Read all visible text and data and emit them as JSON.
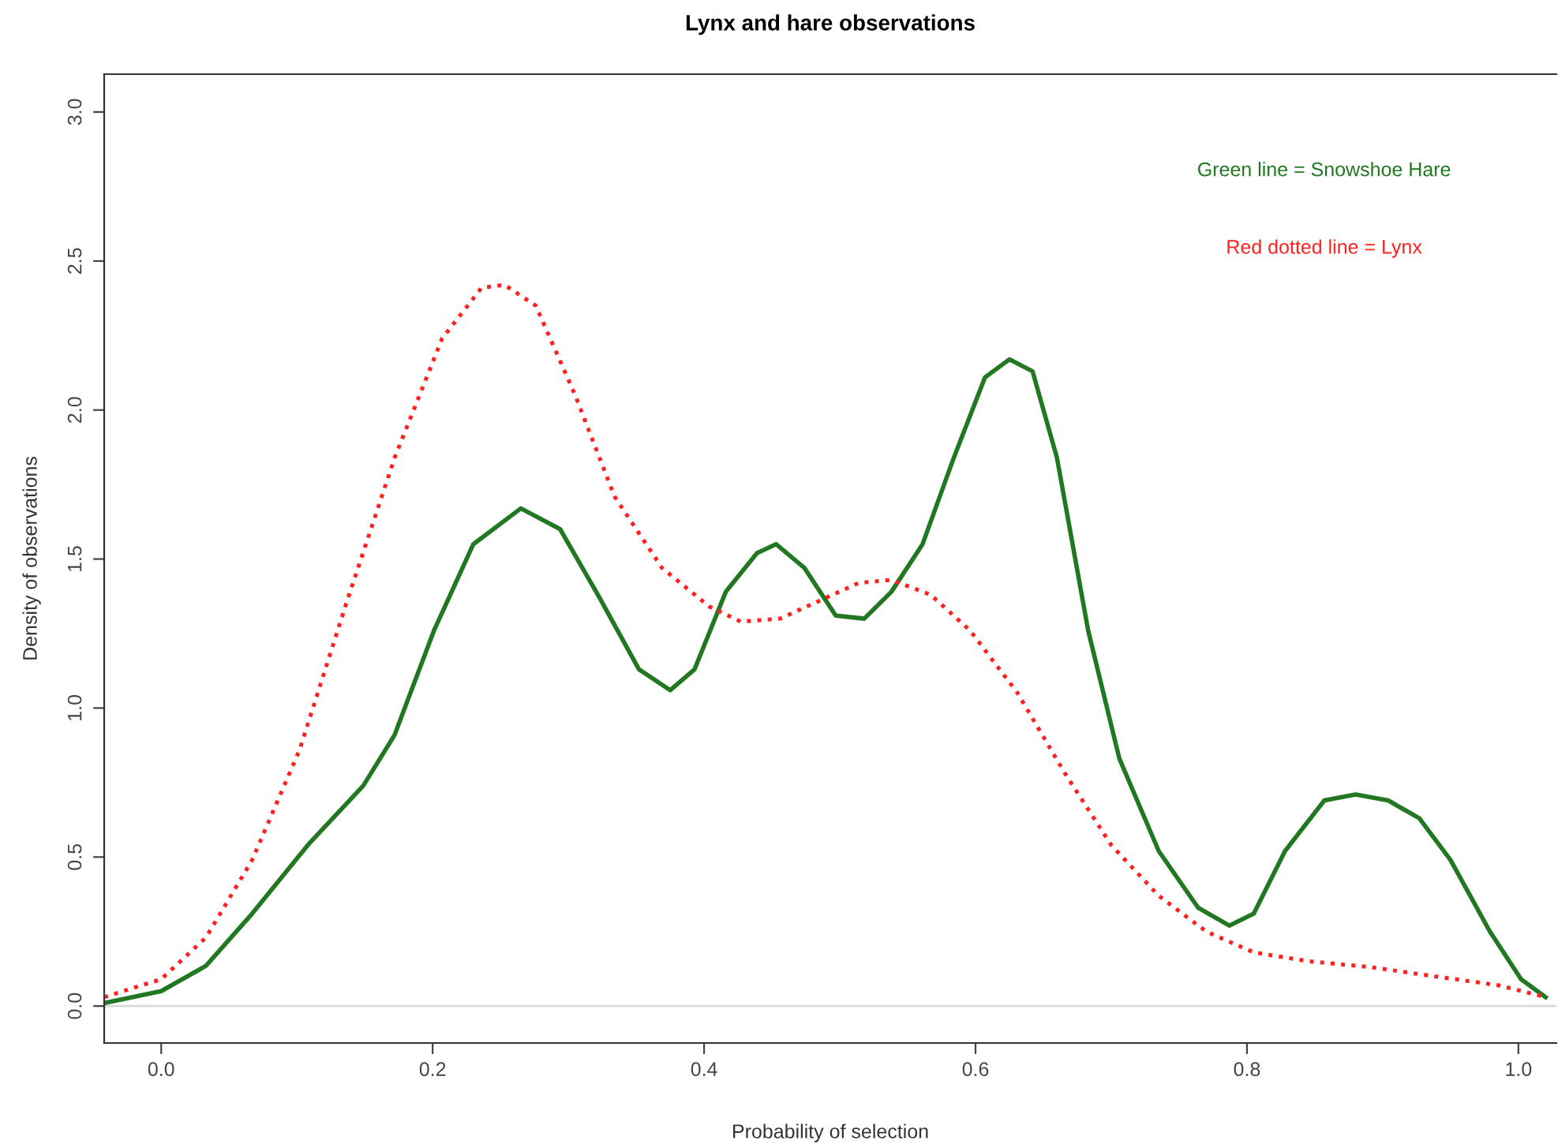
{
  "chart_data": {
    "type": "line",
    "title": "Lynx and hare observations",
    "xlabel": "Probability of selection",
    "ylabel": "Density of observations",
    "xlim": [
      -0.042,
      1.028
    ],
    "ylim": [
      -0.124,
      3.127
    ],
    "xticks": [
      {
        "value": 0,
        "label": "0.0"
      },
      0.2,
      0.4,
      0.6,
      0.8,
      {
        "value": 1,
        "label": "1.0"
      }
    ],
    "yticks": [
      {
        "value": 0,
        "label": "0.0"
      },
      0.5,
      {
        "value": 1,
        "label": "1.0"
      },
      1.5,
      {
        "value": 2,
        "label": "2.0"
      },
      2.5,
      {
        "value": 3,
        "label": "3.0"
      }
    ],
    "grid": false,
    "legend": false,
    "ref_lines": [
      {
        "axis": "y",
        "value": 0,
        "color": "#d9d9d9"
      }
    ],
    "annotations": [
      "Green line = Snowshoe Hare",
      "Red dotted line = Lynx"
    ],
    "series": [
      {
        "color": "#217821",
        "line_style": "solid",
        "x": [
          -0.042,
          0.0,
          0.033,
          0.067,
          0.108,
          0.149,
          0.172,
          0.201,
          0.23,
          0.265,
          0.294,
          0.323,
          0.352,
          0.375,
          0.393,
          0.416,
          0.439,
          0.453,
          0.474,
          0.497,
          0.518,
          0.538,
          0.561,
          0.584,
          0.607,
          0.625,
          0.642,
          0.66,
          0.683,
          0.706,
          0.735,
          0.764,
          0.787,
          0.805,
          0.828,
          0.857,
          0.88,
          0.904,
          0.927,
          0.95,
          0.979,
          1.002,
          1.02
        ],
        "values": [
          0.01,
          0.05,
          0.135,
          0.31,
          0.54,
          0.74,
          0.91,
          1.26,
          1.55,
          1.67,
          1.6,
          1.37,
          1.13,
          1.06,
          1.13,
          1.39,
          1.52,
          1.55,
          1.47,
          1.31,
          1.3,
          1.39,
          1.55,
          1.84,
          2.11,
          2.17,
          2.13,
          1.84,
          1.26,
          0.83,
          0.52,
          0.33,
          0.27,
          0.31,
          0.52,
          0.69,
          0.71,
          0.69,
          0.63,
          0.49,
          0.25,
          0.09,
          0.03
        ]
      },
      {
        "color": "#ff2020",
        "line_style": "dotted",
        "x": [
          -0.042,
          0.0,
          0.033,
          0.067,
          0.102,
          0.137,
          0.172,
          0.207,
          0.236,
          0.253,
          0.276,
          0.305,
          0.334,
          0.369,
          0.404,
          0.427,
          0.456,
          0.485,
          0.514,
          0.538,
          0.567,
          0.596,
          0.631,
          0.666,
          0.7,
          0.735,
          0.77,
          0.805,
          0.846,
          0.892,
          0.938,
          0.985,
          1.02
        ],
        "values": [
          0.03,
          0.09,
          0.23,
          0.49,
          0.86,
          1.36,
          1.84,
          2.24,
          2.41,
          2.42,
          2.35,
          2.05,
          1.71,
          1.47,
          1.34,
          1.29,
          1.3,
          1.36,
          1.42,
          1.43,
          1.38,
          1.26,
          1.05,
          0.78,
          0.54,
          0.37,
          0.25,
          0.18,
          0.15,
          0.13,
          0.1,
          0.07,
          0.03
        ]
      }
    ]
  }
}
